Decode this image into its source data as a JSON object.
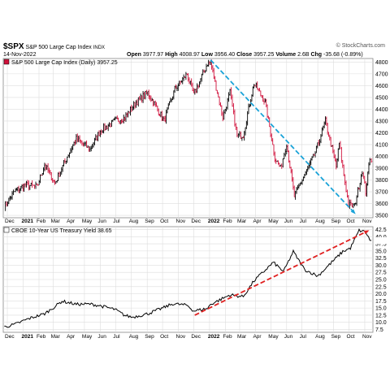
{
  "header": {
    "symbol": "$SPX",
    "name": "S&P 500 Large Cap Index",
    "exchange": "INDX",
    "date": "14-Nov-2022",
    "open_label": "Open",
    "open": "3977.97",
    "high_label": "High",
    "high": "4008.97",
    "low_label": "Low",
    "low": "3956.40",
    "close_label": "Close",
    "close": "3957.25",
    "volume_label": "Volume",
    "volume": "2.6B",
    "chg_label": "Chg",
    "chg": "-35.68 (-0.89%)",
    "watermark": "© StockCharts.com"
  },
  "colors": {
    "up": "#000000",
    "down": "#d0103a",
    "trend_spx": "#1aa3d8",
    "trend_yield": "#e02020",
    "grid": "#dddddd",
    "line": "#000000"
  },
  "chart_data": [
    {
      "type": "line",
      "legend": "S&P 500 Large Cap Index (Daily) 3957.25",
      "chart_style": "ohlc bars",
      "grid": true,
      "x_ticks": [
        "Dec",
        "2021",
        "Feb",
        "Mar",
        "Apr",
        "May",
        "Jun",
        "Jul",
        "Aug",
        "Sep",
        "Oct",
        "Nov",
        "Dec",
        "2022",
        "Feb",
        "Mar",
        "Apr",
        "May",
        "Jun",
        "Jul",
        "Aug",
        "Sep",
        "Oct",
        "Nov"
      ],
      "y_ticks": [
        "3500",
        "3600",
        "3700",
        "3800",
        "3900",
        "4000",
        "4100",
        "4200",
        "4300",
        "4400",
        "4500",
        "4600",
        "4700",
        "4800"
      ],
      "ylim": [
        3480,
        4830
      ],
      "x": [
        "2020-11-25",
        "2020-12-15",
        "2021-01-05",
        "2021-01-28",
        "2021-02-12",
        "2021-03-04",
        "2021-03-26",
        "2021-04-15",
        "2021-05-12",
        "2021-06-01",
        "2021-06-30",
        "2021-07-19",
        "2021-08-10",
        "2021-09-02",
        "2021-10-04",
        "2021-10-25",
        "2021-11-18",
        "2021-12-01",
        "2021-12-28",
        "2022-01-03",
        "2022-01-27",
        "2022-02-10",
        "2022-02-24",
        "2022-03-08",
        "2022-03-29",
        "2022-04-20",
        "2022-05-09",
        "2022-05-20",
        "2022-06-01",
        "2022-06-16",
        "2022-07-06",
        "2022-07-27",
        "2022-08-16",
        "2022-09-06",
        "2022-09-12",
        "2022-09-30",
        "2022-10-12",
        "2022-10-27",
        "2022-11-03",
        "2022-11-11",
        "2022-11-14"
      ],
      "values": [
        3580,
        3700,
        3760,
        3740,
        3930,
        3770,
        3980,
        4150,
        4060,
        4220,
        4300,
        4330,
        4460,
        4540,
        4300,
        4570,
        4700,
        4520,
        4790,
        4800,
        4330,
        4540,
        4170,
        4180,
        4620,
        4460,
        3990,
        3900,
        4110,
        3660,
        3840,
        4030,
        4300,
        3910,
        4110,
        3590,
        3580,
        3880,
        3700,
        3990,
        3957
      ],
      "trendline": {
        "x": [
          "2022-01-03",
          "2022-10-12"
        ],
        "y": [
          4818,
          3520
        ]
      }
    },
    {
      "type": "line",
      "legend": "CBOE 10-Year US Treasury Yield 38.65",
      "grid": true,
      "x_ticks": [
        "Dec",
        "2021",
        "Feb",
        "Mar",
        "Apr",
        "May",
        "Jun",
        "Jul",
        "Aug",
        "Sep",
        "Oct",
        "Nov",
        "Dec",
        "2022",
        "Feb",
        "Mar",
        "Apr",
        "May",
        "Jun",
        "Jul",
        "Aug",
        "Sep",
        "Oct",
        "Nov"
      ],
      "y_ticks": [
        "7.5",
        "10.0",
        "12.5",
        "15.0",
        "17.5",
        "20.0",
        "22.5",
        "25.0",
        "27.5",
        "30.0",
        "32.5",
        "35.0",
        "37.5",
        "40.0",
        "42.5"
      ],
      "ylim": [
        6.5,
        43.5
      ],
      "x": [
        "2020-11-25",
        "2020-12-15",
        "2021-01-05",
        "2021-01-14",
        "2021-02-12",
        "2021-03-04",
        "2021-03-18",
        "2021-04-15",
        "2021-05-12",
        "2021-06-01",
        "2021-06-30",
        "2021-07-19",
        "2021-08-03",
        "2021-09-02",
        "2021-10-04",
        "2021-10-21",
        "2021-11-18",
        "2021-12-01",
        "2021-12-28",
        "2022-01-03",
        "2022-02-10",
        "2022-03-08",
        "2022-03-29",
        "2022-05-06",
        "2022-05-26",
        "2022-06-14",
        "2022-07-06",
        "2022-08-01",
        "2022-08-31",
        "2022-09-19",
        "2022-10-04",
        "2022-10-21",
        "2022-11-03",
        "2022-11-11",
        "2022-11-14"
      ],
      "values": [
        8.4,
        9.2,
        10.8,
        11.4,
        13.0,
        15.5,
        17.4,
        16.3,
        16.4,
        15.8,
        14.5,
        12.4,
        11.8,
        13.0,
        15.2,
        16.5,
        16.0,
        14.0,
        14.8,
        16.3,
        19.6,
        19.0,
        24.5,
        31.0,
        27.8,
        34.8,
        28.5,
        26.2,
        31.5,
        34.8,
        36.0,
        42.2,
        41.6,
        38.7,
        38.65
      ],
      "trendline": {
        "x": [
          "2021-12-03",
          "2022-11-07"
        ],
        "y": [
          12.5,
          42.0
        ]
      }
    }
  ]
}
